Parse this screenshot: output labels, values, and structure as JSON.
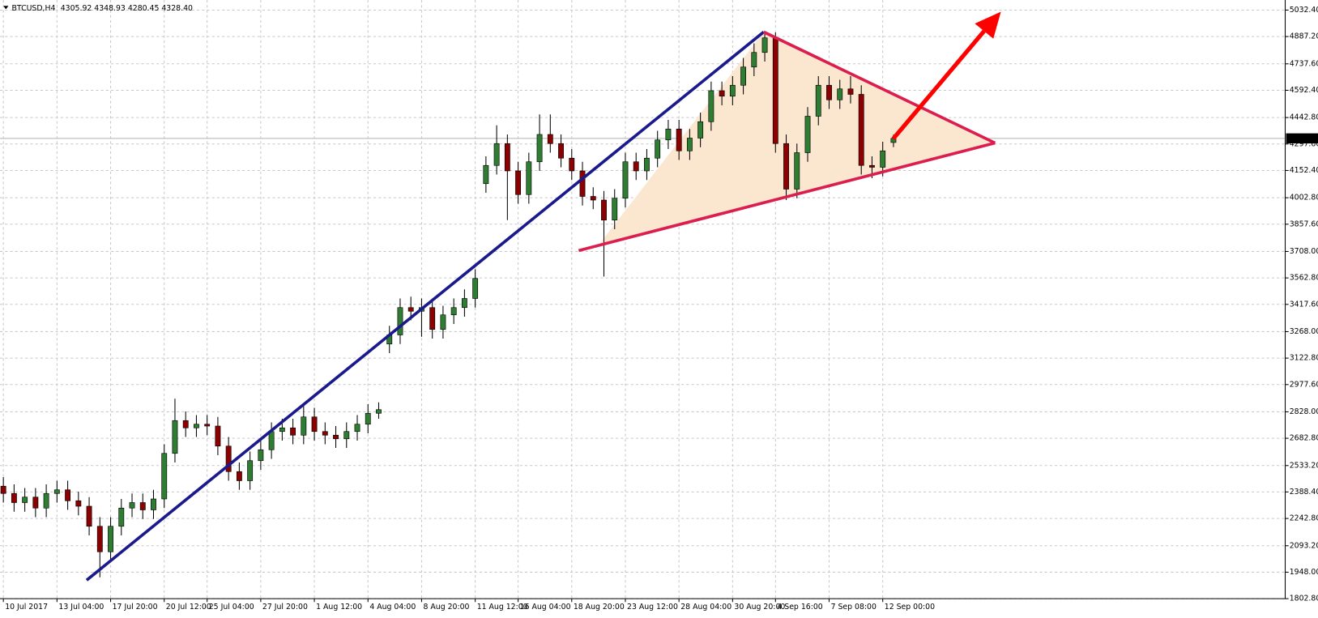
{
  "chart_data": {
    "type": "candlestick",
    "title": "BTCUSD,H4",
    "ohlc_text": "4305.92 4348.93 4280.45 4328.40",
    "categories": [
      "10 Jul 2017",
      null,
      null,
      null,
      null,
      "13 Jul 04:00",
      null,
      null,
      null,
      null,
      "17 Jul 20:00",
      null,
      null,
      null,
      null,
      "20 Jul 12:00",
      null,
      null,
      null,
      "25 Jul 04:00",
      null,
      null,
      null,
      null,
      "27 Jul 20:00",
      null,
      null,
      null,
      null,
      "1 Aug 12:00",
      null,
      null,
      null,
      null,
      "4 Aug 04:00",
      null,
      null,
      null,
      null,
      "8 Aug 20:00",
      null,
      null,
      null,
      null,
      "11 Aug 12:00",
      null,
      null,
      null,
      "16 Aug 04:00",
      null,
      null,
      null,
      null,
      "18 Aug 20:00",
      null,
      null,
      null,
      null,
      "23 Aug 12:00",
      null,
      null,
      null,
      null,
      "28 Aug 04:00",
      null,
      null,
      null,
      null,
      "30 Aug 20:00",
      null,
      null,
      null,
      "4 Sep 16:00",
      null,
      null,
      null,
      null,
      "7 Sep 08:00",
      null,
      null,
      null,
      null,
      "12 Sep 00:00",
      null
    ],
    "open": [
      2420,
      2380,
      2330,
      2360,
      2300,
      2380,
      2400,
      2340,
      2310,
      2200,
      2060,
      2200,
      2300,
      2330,
      2290,
      2350,
      2600,
      2780,
      2740,
      2760,
      2750,
      2640,
      2500,
      2450,
      2560,
      2620,
      2720,
      2740,
      2700,
      2800,
      2720,
      2700,
      2680,
      2720,
      2760,
      2820,
      3200,
      3250,
      3400,
      3380,
      3400,
      3280,
      3360,
      3400,
      3450,
      4080,
      4180,
      4300,
      4150,
      4020,
      4200,
      4350,
      4300,
      4220,
      4150,
      4010,
      3990,
      3880,
      4000,
      4200,
      4150,
      4220,
      4320,
      4380,
      4260,
      4330,
      4420,
      4590,
      4560,
      4620,
      4720,
      4800,
      4880,
      4300,
      4050,
      4250,
      4450,
      4620,
      4540,
      4600,
      4570,
      4180,
      4170,
      4305.92
    ],
    "high": [
      2470,
      2430,
      2410,
      2410,
      2430,
      2450,
      2450,
      2390,
      2360,
      2250,
      2250,
      2350,
      2380,
      2380,
      2400,
      2650,
      2900,
      2830,
      2810,
      2810,
      2800,
      2690,
      2550,
      2610,
      2670,
      2770,
      2790,
      2790,
      2870,
      2850,
      2770,
      2750,
      2770,
      2810,
      2870,
      2880,
      3300,
      3450,
      3460,
      3450,
      3450,
      3410,
      3450,
      3500,
      3610,
      4230,
      4400,
      4350,
      4200,
      4250,
      4460,
      4460,
      4350,
      4270,
      4200,
      4060,
      4040,
      4050,
      4250,
      4250,
      4270,
      4370,
      4430,
      4430,
      4380,
      4470,
      4640,
      4640,
      4670,
      4770,
      4850,
      4910,
      4910,
      4350,
      4300,
      4500,
      4670,
      4670,
      4650,
      4670,
      4620,
      4230,
      4310,
      4348.93
    ],
    "low": [
      2330,
      2280,
      2280,
      2250,
      2250,
      2330,
      2290,
      2260,
      2150,
      1920,
      2010,
      2150,
      2250,
      2240,
      2240,
      2300,
      2550,
      2690,
      2690,
      2700,
      2590,
      2450,
      2400,
      2400,
      2510,
      2570,
      2670,
      2650,
      2650,
      2670,
      2650,
      2630,
      2630,
      2670,
      2710,
      2790,
      3150,
      3200,
      3330,
      3240,
      3230,
      3230,
      3310,
      3350,
      3400,
      4030,
      4130,
      3880,
      3970,
      3970,
      4150,
      4250,
      4170,
      4100,
      3960,
      3940,
      3570,
      3830,
      3950,
      4100,
      4100,
      4170,
      4270,
      4210,
      4210,
      4280,
      4370,
      4510,
      4510,
      4570,
      4670,
      4750,
      4250,
      3990,
      4000,
      4200,
      4400,
      4490,
      4490,
      4520,
      4130,
      4110,
      4120,
      4280.45
    ],
    "close": [
      2380,
      2330,
      2360,
      2300,
      2380,
      2400,
      2340,
      2310,
      2200,
      2060,
      2200,
      2300,
      2330,
      2290,
      2350,
      2600,
      2780,
      2740,
      2760,
      2750,
      2640,
      2500,
      2450,
      2560,
      2620,
      2720,
      2740,
      2700,
      2800,
      2720,
      2700,
      2680,
      2720,
      2760,
      2820,
      2840,
      3250,
      3400,
      3380,
      3400,
      3280,
      3360,
      3400,
      3450,
      3560,
      4180,
      4300,
      4150,
      4020,
      4200,
      4350,
      4300,
      4220,
      4150,
      4010,
      3990,
      3880,
      4000,
      4200,
      4150,
      4220,
      4320,
      4380,
      4260,
      4330,
      4420,
      4590,
      4560,
      4620,
      4720,
      4800,
      4880,
      4300,
      4050,
      4250,
      4450,
      4620,
      4540,
      4600,
      4570,
      4180,
      4170,
      4260,
      4328.4
    ],
    "up_color": "#2e7d32",
    "down_color": "#8b0000",
    "ylim": [
      1802.8,
      5032.4
    ],
    "yticks": [
      {
        "value": 5032.4,
        "label": "5032.40"
      },
      {
        "value": 4887.2,
        "label": "4887.20"
      },
      {
        "value": 4737.6,
        "label": "4737.60"
      },
      {
        "value": 4592.4,
        "label": "4592.40"
      },
      {
        "value": 4442.8,
        "label": "4442.80"
      },
      {
        "value": 4297.6,
        "label": "4297.60"
      },
      {
        "value": 4152.4,
        "label": "4152.40"
      },
      {
        "value": 4002.8,
        "label": "4002.80"
      },
      {
        "value": 3857.6,
        "label": "3857.60"
      },
      {
        "value": 3708,
        "label": "3708.00"
      },
      {
        "value": 3562.8,
        "label": "3562.80"
      },
      {
        "value": 3417.6,
        "label": "3417.60"
      },
      {
        "value": 3268,
        "label": "3268.00"
      },
      {
        "value": 3122.8,
        "label": "3122.80"
      },
      {
        "value": 2977.6,
        "label": "2977.60"
      },
      {
        "value": 2828,
        "label": "2828.00"
      },
      {
        "value": 2682.8,
        "label": "2682.80"
      },
      {
        "value": 2533.2,
        "label": "2533.20"
      },
      {
        "value": 2388.4,
        "label": "2388.40"
      },
      {
        "value": 2242.8,
        "label": "2242.80"
      },
      {
        "value": 2093.2,
        "label": "2093.20"
      },
      {
        "value": 1948,
        "label": "1948.00"
      },
      {
        "value": 1802.8,
        "label": "1802.80"
      }
    ],
    "last_price": {
      "value": 4328.4,
      "label": "4328.40"
    },
    "grid": true
  }
}
